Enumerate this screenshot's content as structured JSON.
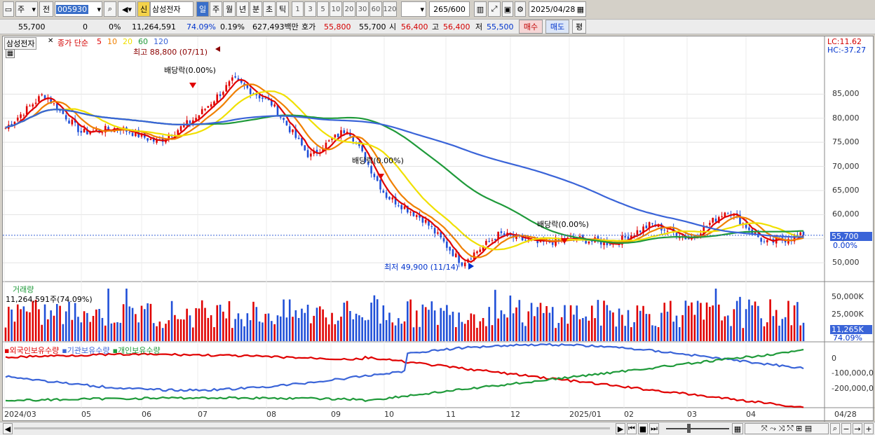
{
  "toolbar": {
    "period_type": "주",
    "prev_label": "전",
    "code": "005930",
    "new_label": "신",
    "name": "삼성전자",
    "periods": [
      "일",
      "주",
      "월",
      "년",
      "분",
      "초",
      "틱"
    ],
    "selected_period": "일",
    "intervals": [
      "1",
      "3",
      "5",
      "10",
      "20",
      "30",
      "60",
      "120"
    ],
    "count": "265",
    "max_count": "/600",
    "date": "2025/04/28"
  },
  "quote": {
    "price": "55,700",
    "change": "0",
    "change_pct": "0%",
    "volume": "11,264,591",
    "volume_ratio": "74.09%",
    "turnover": "0.19%",
    "amount": "627,493백만",
    "ask_label": "호가",
    "ask": "55,800",
    "bid": "55,700",
    "open_label": "시",
    "open": "56,400",
    "high_label": "고",
    "high": "56,400",
    "low_label": "저",
    "low": "55,500",
    "buy_label": "매수",
    "sell_label": "매도",
    "eval_label": "평"
  },
  "price_panel": {
    "name": "삼성전자",
    "ma_title": "종가 단순",
    "ma_periods": [
      "5",
      "10",
      "20",
      "60",
      "120"
    ],
    "ma_colors": [
      "#e00000",
      "#f08000",
      "#f0e000",
      "#1f9a3a",
      "#3a64d8"
    ],
    "high_note": "최고 88,800 (07/11)",
    "low_note": "최저 49,900 (11/14)",
    "dividend_notes": [
      "배당락(0.00%)",
      "배당락(0.00%)",
      "배당락(0.00%)"
    ],
    "lc": "LC:11.62",
    "hc": "HC:-37.27",
    "y_ticks": [
      "85,000",
      "80,000",
      "75,000",
      "70,000",
      "65,000",
      "60,000",
      "55,000",
      "50,000"
    ],
    "current_price": "55,700",
    "current_pct": "0.00%"
  },
  "volume_panel": {
    "title": "거래량",
    "value": "11,264,591주(74.09%)",
    "y_ticks": [
      "50,000K",
      "25,000K"
    ],
    "current": "11,265K",
    "current_pct": "74.09%"
  },
  "holdings_panel": {
    "series": [
      "외국인보유수량",
      "기관보유수량",
      "개인보유수량"
    ],
    "colors": [
      "#e00000",
      "#3a64d8",
      "#1f9a3a"
    ],
    "y_ticks": [
      "0",
      "-100,000,0",
      "-200,000,0"
    ]
  },
  "x_axis": {
    "labels": [
      "2024/03",
      "05",
      "06",
      "07",
      "08",
      "09",
      "10",
      "11",
      "12",
      "2025/01",
      "02",
      "03",
      "04"
    ],
    "end_label": "04/28"
  },
  "chart_data": {
    "type": "candlestick",
    "title": "삼성전자",
    "ylim": [
      49000,
      90000
    ],
    "months": [
      "2024/03",
      "2024/04",
      "2024/05",
      "2024/06",
      "2024/07",
      "2024/08",
      "2024/09",
      "2024/10",
      "2024/11",
      "2024/12",
      "2025/01",
      "2025/02",
      "2025/03",
      "2025/04"
    ],
    "approx_close_path": [
      {
        "x": "2024/03",
        "close": 78000
      },
      {
        "x": "2024/04 early",
        "close": 85000
      },
      {
        "x": "2024/04 late",
        "close": 77000
      },
      {
        "x": "2024/05",
        "close": 78000
      },
      {
        "x": "2024/06 early",
        "close": 75000
      },
      {
        "x": "2024/06 late",
        "close": 80000
      },
      {
        "x": "2024/07 mid",
        "close": 88000
      },
      {
        "x": "2024/07 late",
        "close": 83000
      },
      {
        "x": "2024/08 early",
        "close": 72000
      },
      {
        "x": "2024/08 late",
        "close": 78000
      },
      {
        "x": "2024/09 mid",
        "close": 64000
      },
      {
        "x": "2024/10",
        "close": 59000
      },
      {
        "x": "2024/11 mid",
        "close": 50000
      },
      {
        "x": "2024/11 late",
        "close": 56000
      },
      {
        "x": "2024/12",
        "close": 54000
      },
      {
        "x": "2025/01",
        "close": 55000
      },
      {
        "x": "2025/02",
        "close": 54000
      },
      {
        "x": "2025/02 late",
        "close": 58000
      },
      {
        "x": "2025/03 mid",
        "close": 55000
      },
      {
        "x": "2025/03 late",
        "close": 61000
      },
      {
        "x": "2025/04 early",
        "close": 54000
      },
      {
        "x": "2025/04/28",
        "close": 55700
      }
    ]
  }
}
